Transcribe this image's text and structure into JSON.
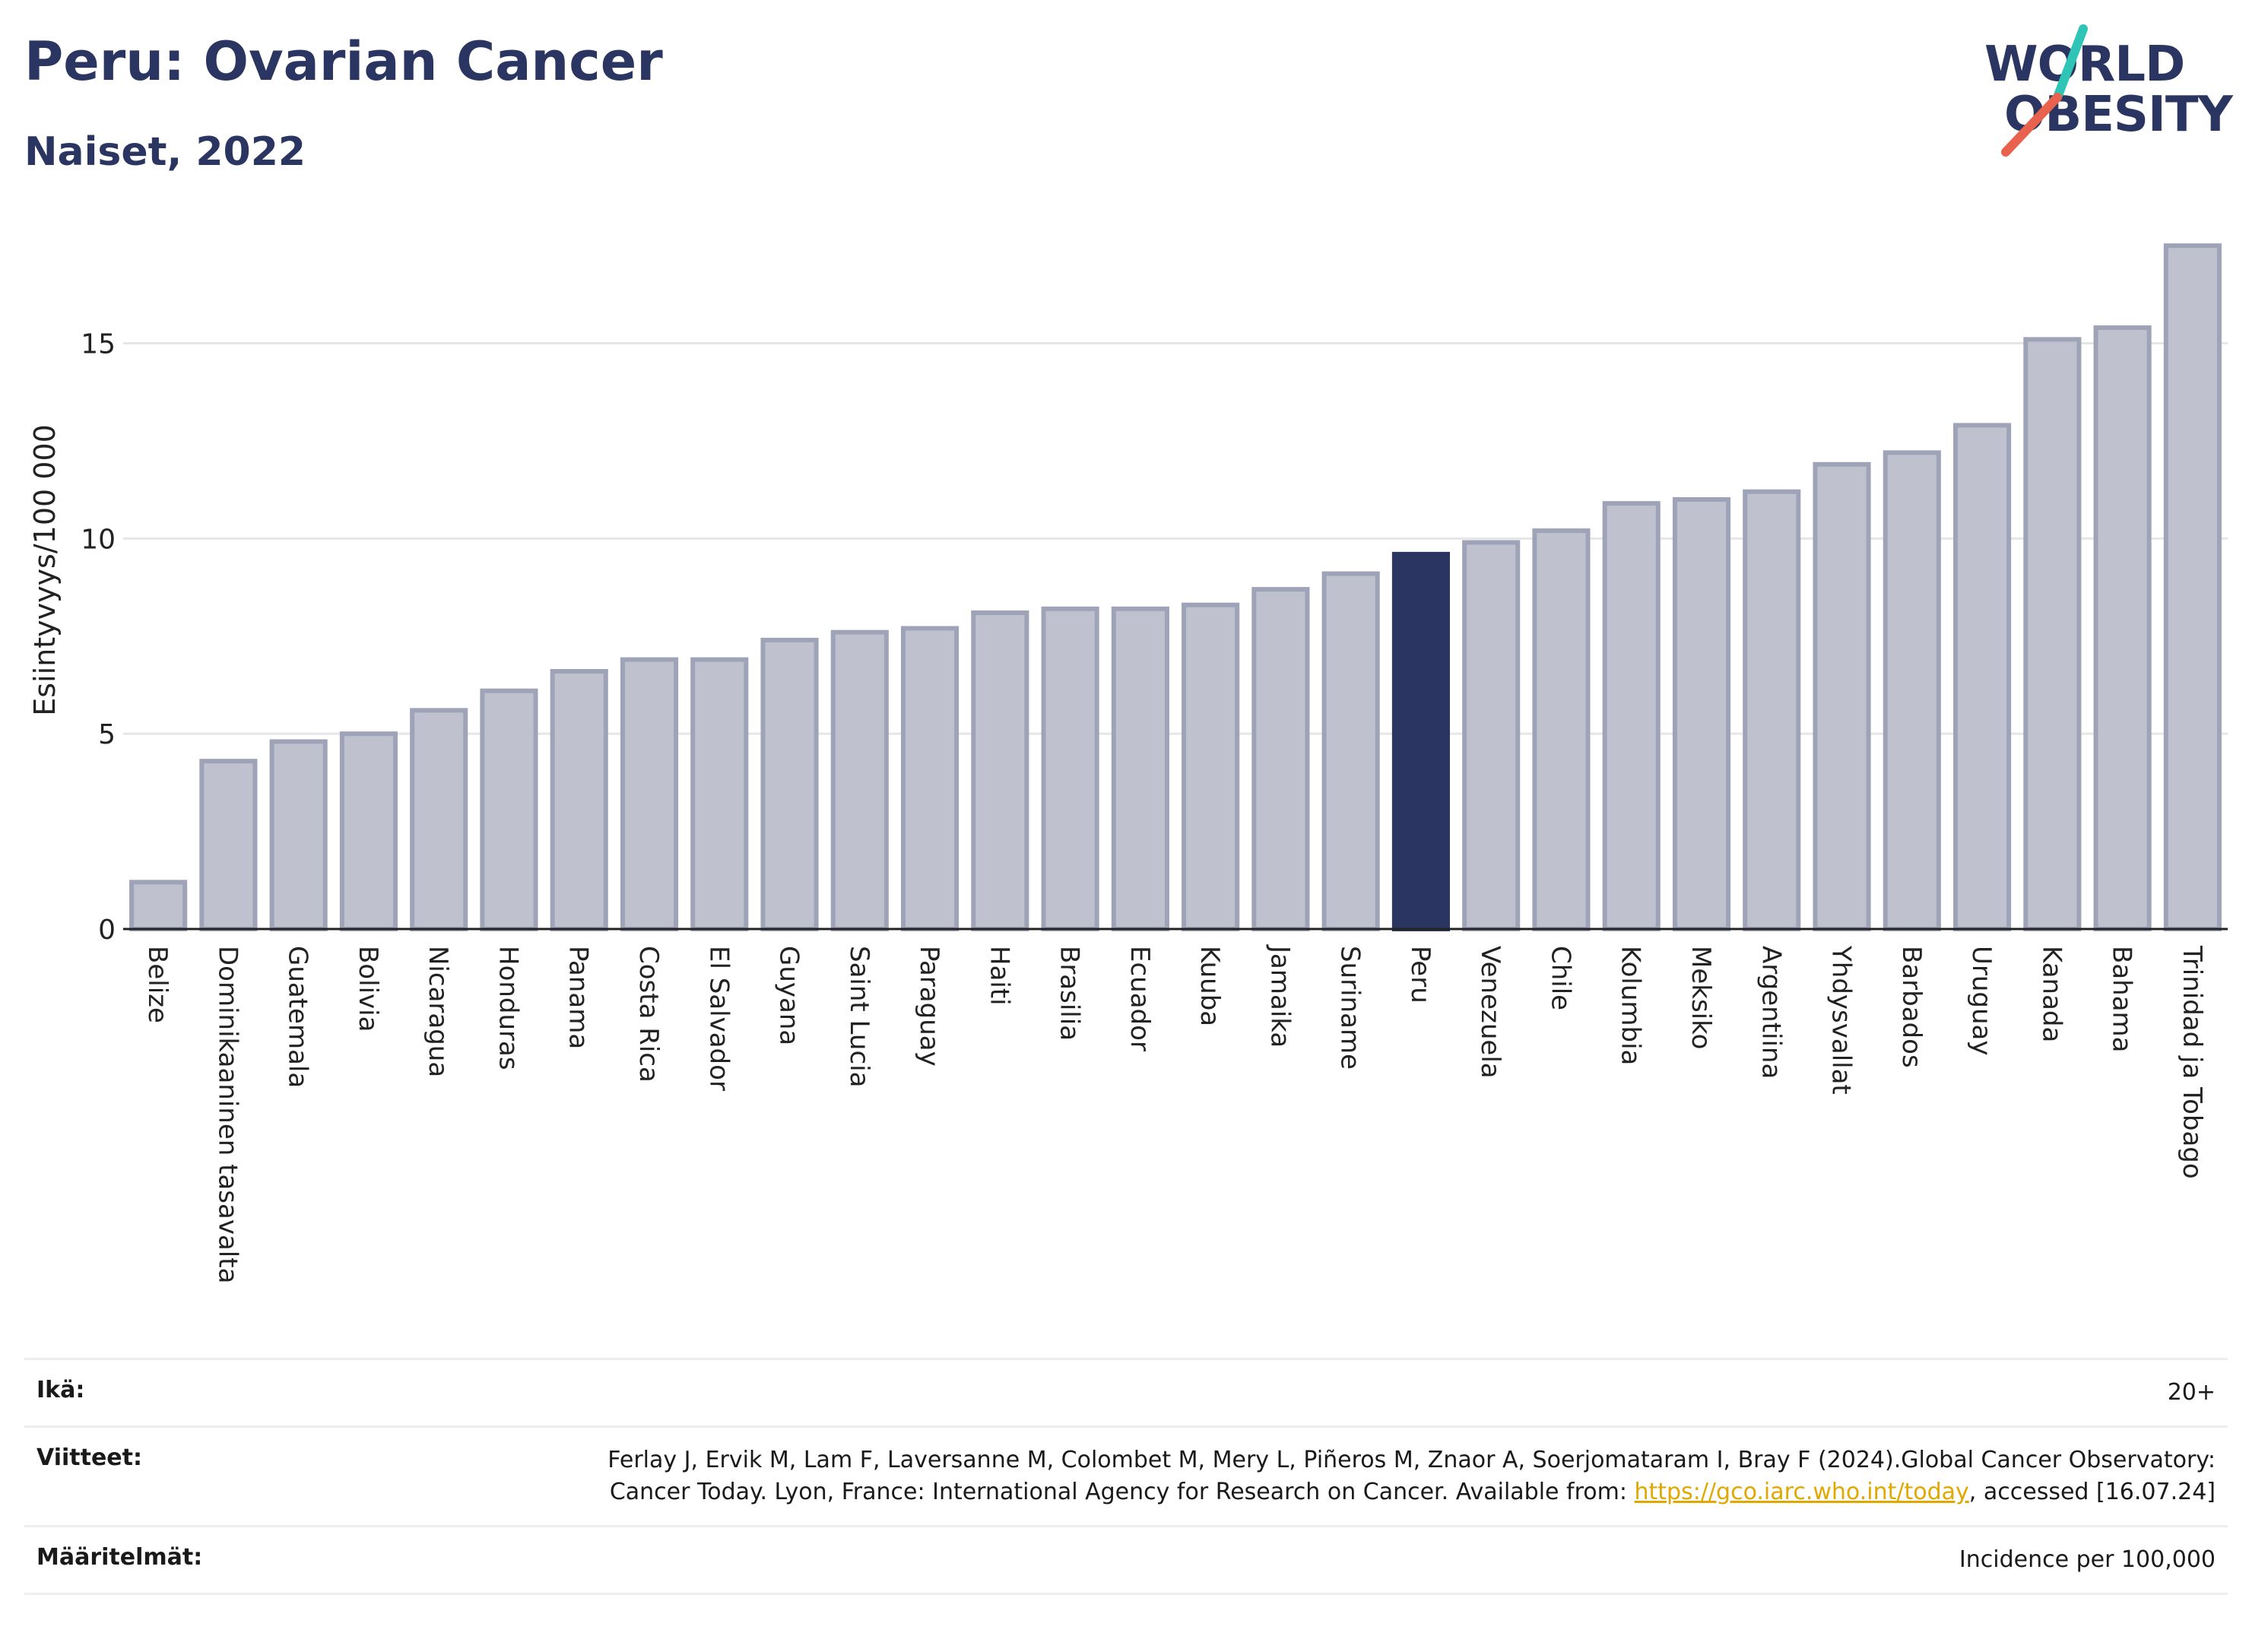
{
  "header": {
    "title": "Peru: Ovarian Cancer",
    "subtitle": "Naiset, 2022"
  },
  "logo": {
    "line1": "WORLD",
    "line2": "OBESITY",
    "accent_colors": [
      "#2ec4b6",
      "#e8624e"
    ]
  },
  "colors": {
    "bar": "#bfc2ce",
    "bar_border": "#9ea3b8",
    "highlight": "#2b3561",
    "grid": "#e6e6e6"
  },
  "chart_data": {
    "type": "bar",
    "title": "Peru: Ovarian Cancer",
    "subtitle": "Naiset, 2022",
    "xlabel": "",
    "ylabel": "Esiintyvyys/100 000",
    "ylim": [
      0,
      17.6
    ],
    "yticks": [
      0,
      5,
      10,
      15
    ],
    "grid": true,
    "highlight": "Peru",
    "categories": [
      "Belize",
      "Dominikaaninen tasavalta",
      "Guatemala",
      "Bolivia",
      "Nicaragua",
      "Honduras",
      "Panama",
      "Costa Rica",
      "El Salvador",
      "Guyana",
      "Saint Lucia",
      "Paraguay",
      "Haiti",
      "Brasilia",
      "Ecuador",
      "Kuuba",
      "Jamaika",
      "Suriname",
      "Peru",
      "Venezuela",
      "Chile",
      "Kolumbia",
      "Meksiko",
      "Argentiina",
      "Yhdysvallat",
      "Barbados",
      "Uruguay",
      "Kanada",
      "Bahama",
      "Trinidad ja Tobago"
    ],
    "values": [
      1.2,
      4.3,
      4.8,
      5.0,
      5.6,
      6.1,
      6.6,
      6.9,
      6.9,
      7.4,
      7.6,
      7.7,
      8.1,
      8.2,
      8.2,
      8.3,
      8.7,
      9.1,
      9.6,
      9.9,
      10.2,
      10.9,
      11.0,
      11.2,
      11.9,
      12.2,
      12.9,
      15.1,
      15.4,
      17.5
    ]
  },
  "info": {
    "age_label": "Ikä:",
    "age_value": "20+",
    "ref_label": "Viitteet:",
    "ref_text_1": "Ferlay J, Ervik M, Lam F, Laversanne M, Colombet M, Mery L, Piñeros M, Znaor A, Soerjomataram I, Bray F (2024).Global Cancer Observatory: Cancer Today. Lyon, France: International Agency for Research on Cancer. Available from: ",
    "ref_link": "https://gco.iarc.who.int/today",
    "ref_text_2": ", accessed [16.07.24]",
    "def_label": "Määritelmät:",
    "def_value": "Incidence per 100,000"
  }
}
